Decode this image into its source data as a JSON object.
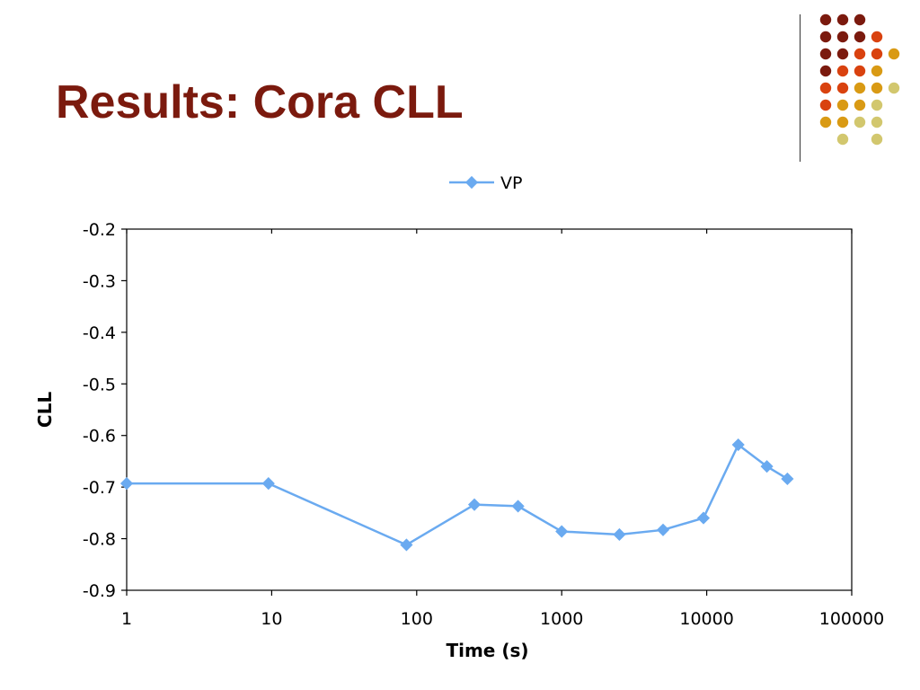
{
  "slide": {
    "title": "Results: Cora CLL",
    "title_color": "#7B1A0E"
  },
  "decoration": {
    "dot_colors": [
      "#7B1A0E",
      "#D9420F",
      "#D99A14",
      "#D2C76E"
    ],
    "dot_grid": [
      [
        0,
        0,
        0,
        -1,
        -1
      ],
      [
        0,
        0,
        0,
        1,
        -1
      ],
      [
        0,
        0,
        1,
        1,
        2
      ],
      [
        0,
        1,
        1,
        2,
        -1
      ],
      [
        1,
        1,
        2,
        2,
        3
      ],
      [
        1,
        2,
        2,
        3,
        -1
      ],
      [
        2,
        2,
        3,
        3,
        -1
      ],
      [
        -1,
        3,
        -1,
        3,
        -1
      ]
    ]
  },
  "chart_data": {
    "type": "line",
    "xscale": "log",
    "xlim": [
      1,
      100000
    ],
    "ylim": [
      -0.9,
      -0.2
    ],
    "xlabel": "Time (s)",
    "ylabel": "CLL",
    "x_ticks": [
      1,
      10,
      100,
      1000,
      10000,
      100000
    ],
    "x_tick_labels": [
      "1",
      "10",
      "100",
      "1000",
      "10000",
      "100000"
    ],
    "y_ticks": [
      -0.2,
      -0.3,
      -0.4,
      -0.5,
      -0.6,
      -0.7,
      -0.8,
      -0.9
    ],
    "y_tick_labels": [
      "-0.2",
      "-0.3",
      "-0.4",
      "-0.5",
      "-0.6",
      "-0.7",
      "-0.8",
      "-0.9"
    ],
    "grid": false,
    "legend_position": "top-center",
    "series": [
      {
        "name": "VP",
        "color": "#6AAAF0",
        "marker": "diamond",
        "x": [
          1,
          9.5,
          85,
          250,
          500,
          1000,
          2500,
          5000,
          9500,
          16500,
          26000,
          36000
        ],
        "y": [
          -0.693,
          -0.693,
          -0.812,
          -0.734,
          -0.737,
          -0.786,
          -0.792,
          -0.783,
          -0.76,
          -0.618,
          -0.66,
          -0.684
        ]
      }
    ]
  }
}
